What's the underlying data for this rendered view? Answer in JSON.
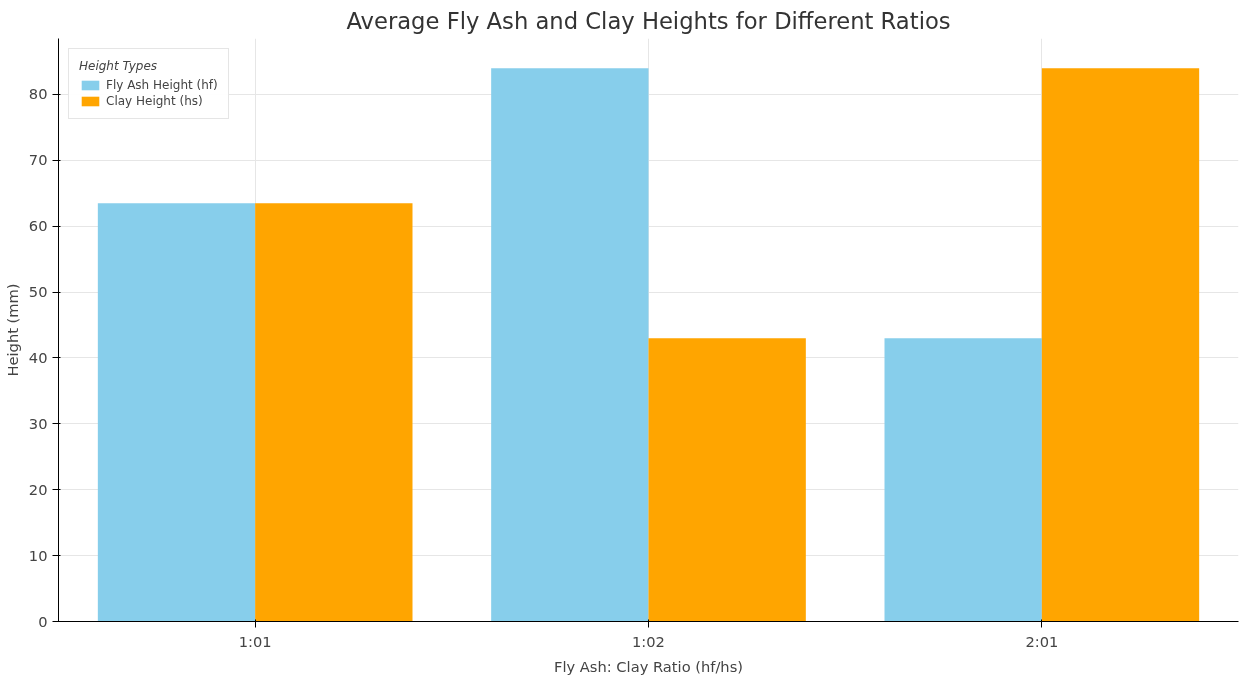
{
  "chart_data": {
    "type": "bar",
    "title": "Average Fly Ash and Clay Heights for Different Ratios",
    "xlabel": "Fly Ash: Clay Ratio (hf/hs)",
    "ylabel": "Height (mm)",
    "legend_title": "Height Types",
    "categories": [
      "1:01",
      "1:02",
      "2:01"
    ],
    "series": [
      {
        "name": "Fly Ash Height (hf)",
        "color": "#87ceeb",
        "values": [
          63.5,
          84,
          43
        ]
      },
      {
        "name": "Clay Height (hs)",
        "color": "#ffa500",
        "values": [
          63.5,
          43,
          84
        ]
      }
    ],
    "ylim": [
      0,
      88.5
    ],
    "yticks": [
      0,
      10,
      20,
      30,
      40,
      50,
      60,
      70,
      80
    ],
    "grid": true,
    "legend": "top left"
  }
}
